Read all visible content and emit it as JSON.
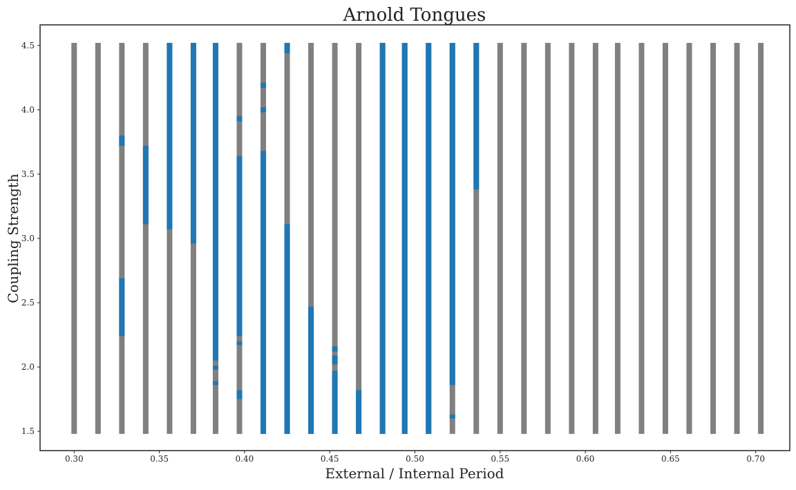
{
  "chart_data": {
    "type": "bar",
    "title": "Arnold Tongues",
    "xlabel": "External / Internal Period",
    "ylabel": "Coupling Strength",
    "xlim": [
      0.28,
      0.72
    ],
    "ylim": [
      1.35,
      4.66
    ],
    "x_ticks": [
      "0.30",
      "0.35",
      "0.40",
      "0.45",
      "0.50",
      "0.55",
      "0.60",
      "0.65",
      "0.70"
    ],
    "x_tick_values": [
      0.3,
      0.35,
      0.4,
      0.45,
      0.5,
      0.55,
      0.6,
      0.65,
      0.7
    ],
    "y_ticks": [
      "1.5",
      "2.0",
      "2.5",
      "3.0",
      "3.5",
      "4.0",
      "4.5"
    ],
    "y_tick_values": [
      1.5,
      2.0,
      2.5,
      3.0,
      3.5,
      4.0,
      4.5
    ],
    "colors": {
      "locked": "#1f77b4",
      "unlocked": "#808080"
    },
    "grid": false,
    "series": [
      {
        "x": 0.3,
        "locked_ranges": []
      },
      {
        "x": 0.314,
        "locked_ranges": []
      },
      {
        "x": 0.328,
        "locked_ranges": [
          [
            2.24,
            2.69
          ],
          [
            3.72,
            3.8
          ]
        ]
      },
      {
        "x": 0.342,
        "locked_ranges": [
          [
            3.11,
            3.72
          ]
        ]
      },
      {
        "x": 0.356,
        "locked_ranges": [
          [
            3.07,
            4.52
          ]
        ]
      },
      {
        "x": 0.37,
        "locked_ranges": [
          [
            2.96,
            4.52
          ]
        ]
      },
      {
        "x": 0.383,
        "locked_ranges": [
          [
            1.86,
            1.89
          ],
          [
            1.98,
            2.01
          ],
          [
            2.05,
            4.52
          ]
        ]
      },
      {
        "x": 0.397,
        "locked_ranges": [
          [
            1.75,
            1.82
          ],
          [
            2.17,
            2.2
          ],
          [
            2.24,
            3.64
          ],
          [
            3.91,
            3.95
          ]
        ]
      },
      {
        "x": 0.411,
        "locked_ranges": [
          [
            1.48,
            3.68
          ],
          [
            3.98,
            4.02
          ],
          [
            4.17,
            4.21
          ]
        ]
      },
      {
        "x": 0.425,
        "locked_ranges": [
          [
            1.48,
            3.11
          ],
          [
            4.44,
            4.52
          ]
        ]
      },
      {
        "x": 0.439,
        "locked_ranges": [
          [
            1.48,
            2.47
          ]
        ]
      },
      {
        "x": 0.453,
        "locked_ranges": [
          [
            1.48,
            1.97
          ],
          [
            2.02,
            2.09
          ],
          [
            2.12,
            2.16
          ]
        ]
      },
      {
        "x": 0.467,
        "locked_ranges": [
          [
            1.48,
            1.82
          ]
        ]
      },
      {
        "x": 0.481,
        "locked_ranges": [
          [
            1.48,
            4.52
          ]
        ]
      },
      {
        "x": 0.494,
        "locked_ranges": [
          [
            1.48,
            4.52
          ]
        ]
      },
      {
        "x": 0.508,
        "locked_ranges": [
          [
            1.48,
            4.52
          ]
        ]
      },
      {
        "x": 0.522,
        "locked_ranges": [
          [
            1.6,
            1.63
          ],
          [
            1.86,
            4.52
          ]
        ]
      },
      {
        "x": 0.536,
        "locked_ranges": [
          [
            3.38,
            4.52
          ]
        ]
      },
      {
        "x": 0.55,
        "locked_ranges": []
      },
      {
        "x": 0.564,
        "locked_ranges": []
      },
      {
        "x": 0.578,
        "locked_ranges": []
      },
      {
        "x": 0.592,
        "locked_ranges": []
      },
      {
        "x": 0.606,
        "locked_ranges": []
      },
      {
        "x": 0.619,
        "locked_ranges": []
      },
      {
        "x": 0.633,
        "locked_ranges": []
      },
      {
        "x": 0.647,
        "locked_ranges": []
      },
      {
        "x": 0.661,
        "locked_ranges": []
      },
      {
        "x": 0.675,
        "locked_ranges": []
      },
      {
        "x": 0.689,
        "locked_ranges": []
      },
      {
        "x": 0.703,
        "locked_ranges": []
      }
    ],
    "bar_range": [
      1.48,
      4.52
    ]
  }
}
